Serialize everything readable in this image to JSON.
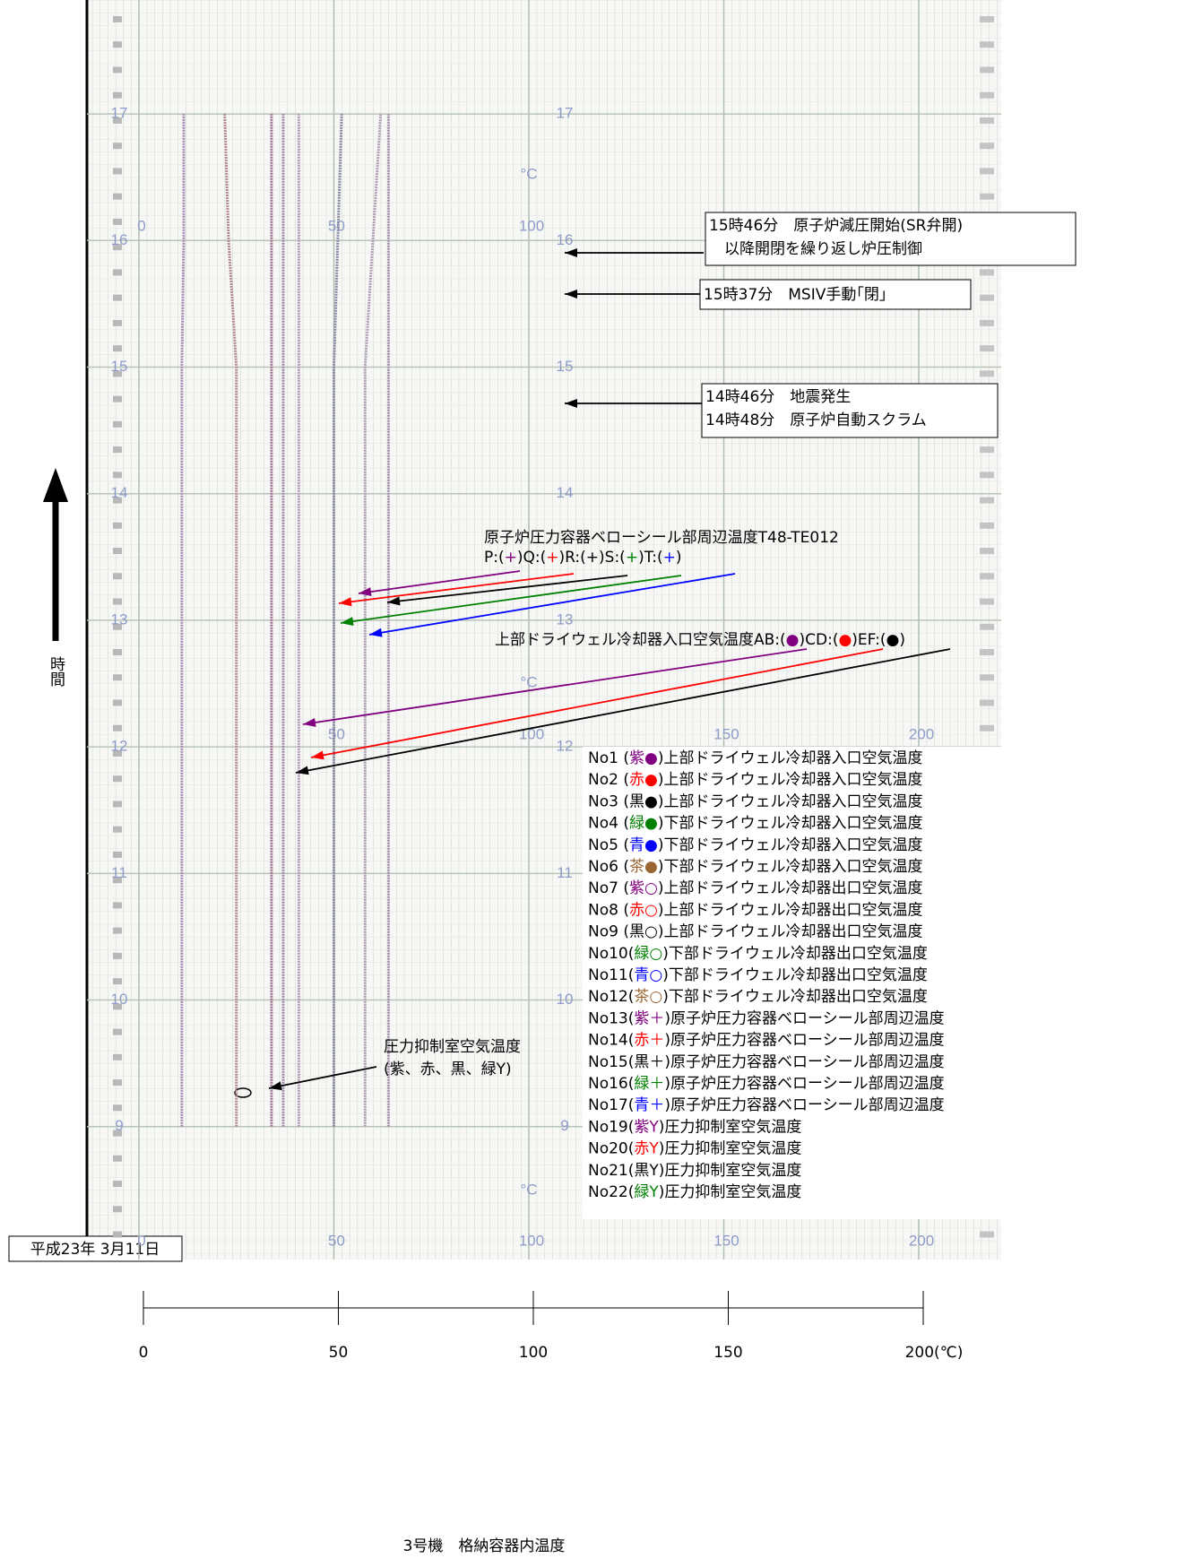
{
  "chart_data": {
    "type": "line",
    "title": "3号機　格納容器内温度",
    "date": "平成23年 3月11日",
    "y_label": "時間",
    "paper_unit": "°C",
    "xlim": [
      0,
      200
    ],
    "xticks": [
      0,
      50,
      100,
      150,
      {
        "value": 200,
        "label": "200(℃)"
      }
    ],
    "ylim": [
      7.95,
      17.9
    ],
    "yticks": [
      9,
      10,
      11,
      12,
      13,
      14,
      15,
      16,
      17
    ],
    "y": [
      9,
      10,
      11,
      12,
      13,
      14,
      15,
      16,
      17
    ],
    "series": [
      {
        "color": "#a98ab3",
        "values": [
          11,
          11,
          11,
          11,
          11,
          11,
          11,
          11.5,
          11.5
        ]
      },
      {
        "color": "#b38a96",
        "values": [
          25,
          25,
          25,
          25,
          25,
          25,
          25,
          23,
          22
        ]
      },
      {
        "color": "#a07496",
        "values": [
          34,
          34,
          34,
          34,
          34,
          34,
          34,
          34,
          34
        ]
      },
      {
        "color": "#9a8aa6",
        "values": [
          37,
          37,
          37,
          37,
          37,
          37,
          37,
          37,
          37
        ]
      },
      {
        "color": "#b09ab6",
        "values": [
          41,
          41,
          41,
          41,
          41,
          41,
          41,
          41,
          41
        ]
      },
      {
        "color": "#8a8aa6",
        "values": [
          50,
          50,
          50,
          50,
          50,
          50,
          50,
          51,
          52
        ]
      },
      {
        "color": "#b0a0b6",
        "values": [
          58,
          58,
          58,
          58,
          58,
          58,
          58,
          60,
          62
        ]
      },
      {
        "color": "#a494ae",
        "values": [
          64,
          64,
          64,
          64,
          64,
          64,
          64,
          64,
          64
        ]
      }
    ],
    "events": [
      [
        "15時46分　原子炉減圧開始(SR弁開)",
        "　以降開閉を繰り返し炉圧制御"
      ],
      [
        "15時37分　MSIV手動｢閉｣"
      ],
      [
        "14時46分　地震発生",
        "14時48分　原子炉自動スクラム"
      ]
    ],
    "bellows_title": "原子炉圧力容器ベローシール部周辺温度T48-TE012",
    "bellows_marks": [
      {
        "text": "P:("
      },
      {
        "text": "+",
        "color": "#800080"
      },
      {
        "text": ")Q:("
      },
      {
        "text": "+",
        "color": "#ff0000"
      },
      {
        "text": ")R:("
      },
      {
        "text": "+",
        "color": "#000000"
      },
      {
        "text": ")S:("
      },
      {
        "text": "+",
        "color": "#008000"
      },
      {
        "text": ")T:("
      },
      {
        "text": "+",
        "color": "#0000ff"
      },
      {
        "text": ")"
      }
    ],
    "drywell_marks": [
      {
        "text": "上部ドライウェル冷却器入口空気温度AB:("
      },
      {
        "text": "●",
        "color": "#800080"
      },
      {
        "text": ")CD:("
      },
      {
        "text": "●",
        "color": "#ff0000"
      },
      {
        "text": ")EF:("
      },
      {
        "text": "●",
        "color": "#000000"
      },
      {
        "text": ")"
      }
    ],
    "suppression_label": [
      "圧力抑制室空気温度",
      "(紫、赤、黒、緑Y)"
    ],
    "legend": [
      [
        {
          "text": "No1 ("
        },
        {
          "text": "紫●",
          "color": "#800080"
        },
        {
          "text": ")上部ドライウェル冷却器入口空気温度"
        }
      ],
      [
        {
          "text": "No2 ("
        },
        {
          "text": "赤●",
          "color": "#ff0000"
        },
        {
          "text": ")上部ドライウェル冷却器入口空気温度"
        }
      ],
      [
        {
          "text": "No3 ("
        },
        {
          "text": "黒●",
          "color": "#000000"
        },
        {
          "text": ")上部ドライウェル冷却器入口空気温度"
        }
      ],
      [
        {
          "text": "No4 ("
        },
        {
          "text": "緑●",
          "color": "#008000"
        },
        {
          "text": ")下部ドライウェル冷却器入口空気温度"
        }
      ],
      [
        {
          "text": "No5 ("
        },
        {
          "text": "青●",
          "color": "#0000ff"
        },
        {
          "text": ")下部ドライウェル冷却器入口空気温度"
        }
      ],
      [
        {
          "text": "No6 ("
        },
        {
          "text": "茶●",
          "color": "#996633"
        },
        {
          "text": ")下部ドライウェル冷却器入口空気温度"
        }
      ],
      [
        {
          "text": "No7 ("
        },
        {
          "text": "紫○",
          "color": "#800080"
        },
        {
          "text": ")上部ドライウェル冷却器出口空気温度"
        }
      ],
      [
        {
          "text": "No8 ("
        },
        {
          "text": "赤○",
          "color": "#ff0000"
        },
        {
          "text": ")上部ドライウェル冷却器出口空気温度"
        }
      ],
      [
        {
          "text": "No9 ("
        },
        {
          "text": "黒○",
          "color": "#000000"
        },
        {
          "text": ")上部ドライウェル冷却器出口空気温度"
        }
      ],
      [
        {
          "text": "No10("
        },
        {
          "text": "緑○",
          "color": "#008000"
        },
        {
          "text": ")下部ドライウェル冷却器出口空気温度"
        }
      ],
      [
        {
          "text": "No11("
        },
        {
          "text": "青○",
          "color": "#0000ff"
        },
        {
          "text": ")下部ドライウェル冷却器出口空気温度"
        }
      ],
      [
        {
          "text": "No12("
        },
        {
          "text": "茶○",
          "color": "#996633"
        },
        {
          "text": ")下部ドライウェル冷却器出口空気温度"
        }
      ],
      [
        {
          "text": "No13("
        },
        {
          "text": "紫＋",
          "color": "#800080"
        },
        {
          "text": ")原子炉圧力容器ベローシール部周辺温度"
        }
      ],
      [
        {
          "text": "No14("
        },
        {
          "text": "赤＋",
          "color": "#ff0000"
        },
        {
          "text": ")原子炉圧力容器ベローシール部周辺温度"
        }
      ],
      [
        {
          "text": "No15("
        },
        {
          "text": "黒＋",
          "color": "#000000"
        },
        {
          "text": ")原子炉圧力容器ベローシール部周辺温度"
        }
      ],
      [
        {
          "text": "No16("
        },
        {
          "text": "緑＋",
          "color": "#008000"
        },
        {
          "text": ")原子炉圧力容器ベローシール部周辺温度"
        }
      ],
      [
        {
          "text": "No17("
        },
        {
          "text": "青＋",
          "color": "#0000ff"
        },
        {
          "text": ")原子炉圧力容器ベローシール部周辺温度"
        }
      ],
      [
        {
          "text": "No19("
        },
        {
          "text": "紫Y",
          "color": "#800080"
        },
        {
          "text": ")圧力抑制室空気温度"
        }
      ],
      [
        {
          "text": "No20("
        },
        {
          "text": "赤Y",
          "color": "#ff0000"
        },
        {
          "text": ")圧力抑制室空気温度"
        }
      ],
      [
        {
          "text": "No21("
        },
        {
          "text": "黒Y",
          "color": "#000000"
        },
        {
          "text": ")圧力抑制室空気温度"
        }
      ],
      [
        {
          "text": "No22("
        },
        {
          "text": "緑Y",
          "color": "#008000"
        },
        {
          "text": ")圧力抑制室空気温度"
        }
      ]
    ]
  }
}
